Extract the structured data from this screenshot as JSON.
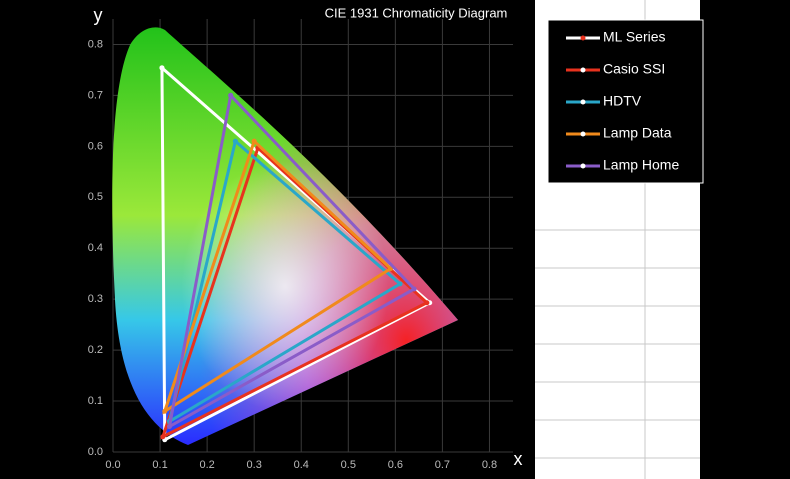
{
  "chart_data": {
    "type": "line",
    "title": "CIE 1931 Chromaticity Diagram",
    "x_label": "x",
    "y_label": "y",
    "xlim": [
      0,
      0.85
    ],
    "ylim": [
      0,
      0.85
    ],
    "xticks": [
      {
        "value": 0,
        "label": "0.0"
      },
      {
        "value": 0.1,
        "label": "0.1"
      },
      {
        "value": 0.2,
        "label": "0.2"
      },
      {
        "value": 0.3,
        "label": "0.3"
      },
      {
        "value": 0.4,
        "label": "0.4"
      },
      {
        "value": 0.5,
        "label": "0.5"
      },
      {
        "value": 0.6,
        "label": "0.6"
      },
      {
        "value": 0.7,
        "label": "0.7"
      },
      {
        "value": 0.8,
        "label": "0.8"
      }
    ],
    "yticks": [
      {
        "value": 0,
        "label": "0.0"
      },
      {
        "value": 0.1,
        "label": "0.1"
      },
      {
        "value": 0.2,
        "label": "0.2"
      },
      {
        "value": 0.3,
        "label": "0.3"
      },
      {
        "value": 0.4,
        "label": "0.4"
      },
      {
        "value": 0.5,
        "label": "0.5"
      },
      {
        "value": 0.6,
        "label": "0.6"
      },
      {
        "value": 0.7,
        "label": "0.7"
      },
      {
        "value": 0.8,
        "label": "0.8"
      }
    ],
    "grid": true,
    "series": [
      {
        "name": "ML Series",
        "color": "#ffffff",
        "x": [
          0.104,
          0.673,
          0.11,
          0.104
        ],
        "y": [
          0.754,
          0.293,
          0.024,
          0.754
        ]
      },
      {
        "name": "Casio SSI",
        "color": "#e8321e",
        "x": [
          0.308,
          0.667,
          0.106,
          0.308
        ],
        "y": [
          0.597,
          0.293,
          0.03,
          0.597
        ]
      },
      {
        "name": "HDTV",
        "color": "#2aa7c9",
        "x": [
          0.26,
          0.61,
          0.12,
          0.26
        ],
        "y": [
          0.61,
          0.33,
          0.06,
          0.61
        ]
      },
      {
        "name": "Lamp Data",
        "color": "#f08a1c",
        "x": [
          0.3,
          0.59,
          0.11,
          0.3
        ],
        "y": [
          0.61,
          0.36,
          0.08,
          0.61
        ]
      },
      {
        "name": "Lamp Home",
        "color": "#8a5cc8",
        "x": [
          0.25,
          0.64,
          0.12,
          0.25
        ],
        "y": [
          0.7,
          0.32,
          0.05,
          0.7
        ]
      }
    ]
  }
}
